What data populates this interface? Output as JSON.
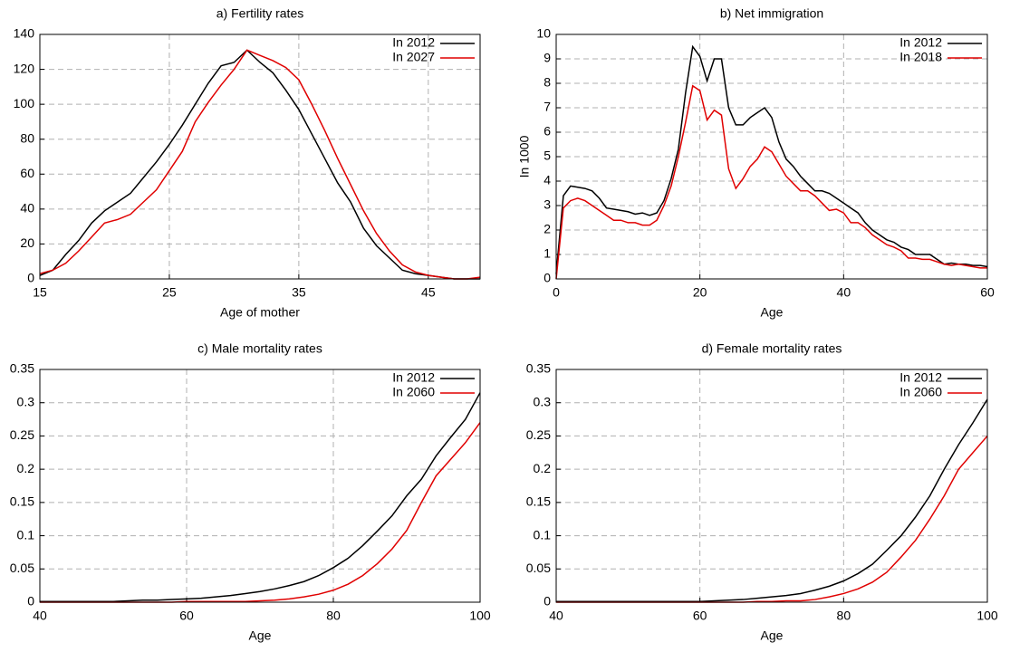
{
  "chart_data": [
    {
      "type": "line",
      "title": "a) Fertility rates",
      "xlabel": "Age of mother",
      "x": [
        15,
        16,
        17,
        18,
        19,
        20,
        21,
        22,
        23,
        24,
        25,
        26,
        27,
        28,
        29,
        30,
        31,
        32,
        33,
        34,
        35,
        36,
        37,
        38,
        39,
        40,
        41,
        42,
        43,
        44,
        45,
        46,
        47,
        48,
        49
      ],
      "series": [
        {
          "name": "In 2012",
          "color": "#000000",
          "values": [
            2,
            5,
            14,
            22,
            32,
            39,
            44,
            49,
            58,
            67,
            77,
            88,
            100,
            112,
            122,
            124,
            131,
            124,
            118,
            108,
            97,
            83,
            69,
            55,
            44,
            29,
            19,
            12,
            5,
            3,
            2,
            1,
            0,
            0,
            0
          ]
        },
        {
          "name": "In 2027",
          "color": "#e00000",
          "values": [
            3,
            5,
            9,
            16,
            24,
            32,
            34,
            37,
            44,
            51,
            62,
            73,
            90,
            101,
            111,
            120,
            131,
            128,
            125,
            121,
            114,
            100,
            85,
            69,
            54,
            39,
            26,
            16,
            8,
            4,
            2,
            1,
            0,
            0,
            1
          ]
        }
      ],
      "xlim": [
        15,
        49
      ],
      "xticks": [
        15,
        25,
        35,
        45
      ],
      "ylim": [
        0,
        140
      ],
      "yticks": [
        0,
        20,
        40,
        60,
        80,
        100,
        120,
        140
      ],
      "grid": true,
      "legend": "upper right"
    },
    {
      "type": "line",
      "title": "b) Net immigration",
      "xlabel": "Age",
      "ylabel": "In 1000",
      "x": [
        0,
        1,
        2,
        3,
        4,
        5,
        6,
        7,
        8,
        9,
        10,
        11,
        12,
        13,
        14,
        15,
        16,
        17,
        18,
        19,
        20,
        21,
        22,
        23,
        24,
        25,
        26,
        27,
        28,
        29,
        30,
        31,
        32,
        33,
        34,
        35,
        36,
        37,
        38,
        39,
        40,
        41,
        42,
        43,
        44,
        45,
        46,
        47,
        48,
        49,
        50,
        51,
        52,
        53,
        54,
        55,
        56,
        57,
        58,
        59,
        60
      ],
      "series": [
        {
          "name": "In 2012",
          "color": "#000000",
          "values": [
            0.2,
            3.4,
            3.8,
            3.75,
            3.7,
            3.6,
            3.3,
            2.9,
            2.85,
            2.8,
            2.75,
            2.65,
            2.7,
            2.6,
            2.7,
            3.2,
            4.1,
            5.3,
            7.6,
            9.5,
            9.1,
            8.1,
            9.0,
            9.0,
            7.0,
            6.3,
            6.3,
            6.6,
            6.8,
            7.0,
            6.6,
            5.6,
            4.9,
            4.6,
            4.2,
            3.9,
            3.6,
            3.6,
            3.5,
            3.3,
            3.1,
            2.9,
            2.7,
            2.3,
            2.0,
            1.8,
            1.6,
            1.5,
            1.3,
            1.2,
            1.0,
            1.0,
            1.0,
            0.8,
            0.6,
            0.65,
            0.6,
            0.6,
            0.55,
            0.55,
            0.5
          ]
        },
        {
          "name": "In 2018",
          "color": "#e00000",
          "values": [
            0,
            2.9,
            3.2,
            3.3,
            3.2,
            3.0,
            2.8,
            2.6,
            2.4,
            2.4,
            2.3,
            2.3,
            2.2,
            2.2,
            2.4,
            3.0,
            3.8,
            5.0,
            6.4,
            7.9,
            7.7,
            6.5,
            6.9,
            6.7,
            4.5,
            3.7,
            4.1,
            4.6,
            4.9,
            5.4,
            5.2,
            4.7,
            4.2,
            3.9,
            3.6,
            3.6,
            3.4,
            3.1,
            2.8,
            2.85,
            2.7,
            2.3,
            2.3,
            2.1,
            1.8,
            1.6,
            1.4,
            1.3,
            1.15,
            0.85,
            0.85,
            0.8,
            0.8,
            0.7,
            0.6,
            0.55,
            0.6,
            0.55,
            0.5,
            0.45,
            0.45
          ]
        }
      ],
      "xlim": [
        0,
        60
      ],
      "xticks": [
        0,
        20,
        40,
        60
      ],
      "ylim": [
        0,
        10
      ],
      "yticks": [
        0,
        1,
        2,
        3,
        4,
        5,
        6,
        7,
        8,
        9,
        10
      ],
      "grid": true,
      "legend": "upper right"
    },
    {
      "type": "line",
      "title": "c) Male mortality rates",
      "xlabel": "Age",
      "x": [
        40,
        42,
        44,
        46,
        48,
        50,
        52,
        54,
        56,
        58,
        60,
        62,
        64,
        66,
        68,
        70,
        72,
        74,
        76,
        78,
        80,
        82,
        84,
        86,
        88,
        90,
        92,
        94,
        96,
        98,
        100
      ],
      "series": [
        {
          "name": "In 2012",
          "color": "#000000",
          "values": [
            0.001,
            0.001,
            0.001,
            0.001,
            0.001,
            0.001,
            0.002,
            0.003,
            0.003,
            0.004,
            0.005,
            0.006,
            0.008,
            0.01,
            0.013,
            0.016,
            0.02,
            0.025,
            0.031,
            0.04,
            0.052,
            0.066,
            0.085,
            0.107,
            0.13,
            0.16,
            0.185,
            0.22,
            0.248,
            0.275,
            0.315
          ]
        },
        {
          "name": "In 2060",
          "color": "#e00000",
          "values": [
            0,
            0,
            0,
            0,
            0,
            0,
            0,
            0,
            0,
            0,
            0.001,
            0.001,
            0.001,
            0.001,
            0.001,
            0.002,
            0.003,
            0.005,
            0.008,
            0.012,
            0.018,
            0.027,
            0.04,
            0.058,
            0.08,
            0.108,
            0.15,
            0.19,
            0.215,
            0.24,
            0.27
          ]
        }
      ],
      "xlim": [
        40,
        100
      ],
      "xticks": [
        40,
        60,
        80,
        100
      ],
      "ylim": [
        0,
        0.35
      ],
      "yticks": [
        0,
        0.05,
        0.1,
        0.15,
        0.2,
        0.25,
        0.3,
        0.35
      ],
      "grid": true,
      "legend": "upper right"
    },
    {
      "type": "line",
      "title": "d) Female mortality rates",
      "xlabel": "Age",
      "x": [
        40,
        42,
        44,
        46,
        48,
        50,
        52,
        54,
        56,
        58,
        60,
        62,
        64,
        66,
        68,
        70,
        72,
        74,
        76,
        78,
        80,
        82,
        84,
        86,
        88,
        90,
        92,
        94,
        96,
        98,
        100
      ],
      "series": [
        {
          "name": "In 2012",
          "color": "#000000",
          "values": [
            0.001,
            0.001,
            0.001,
            0.001,
            0.001,
            0.001,
            0.001,
            0.001,
            0.001,
            0.001,
            0.001,
            0.002,
            0.003,
            0.004,
            0.006,
            0.008,
            0.01,
            0.013,
            0.018,
            0.024,
            0.032,
            0.043,
            0.057,
            0.078,
            0.1,
            0.128,
            0.16,
            0.2,
            0.237,
            0.27,
            0.305
          ]
        },
        {
          "name": "In 2060",
          "color": "#e00000",
          "values": [
            0,
            0,
            0,
            0,
            0,
            0,
            0,
            0,
            0,
            0,
            0,
            0,
            0,
            0,
            0.001,
            0.001,
            0.002,
            0.002,
            0.004,
            0.008,
            0.013,
            0.02,
            0.03,
            0.045,
            0.068,
            0.093,
            0.125,
            0.16,
            0.2,
            0.225,
            0.25
          ]
        }
      ],
      "xlim": [
        40,
        100
      ],
      "xticks": [
        40,
        60,
        80,
        100
      ],
      "ylim": [
        0,
        0.35
      ],
      "yticks": [
        0,
        0.05,
        0.1,
        0.15,
        0.2,
        0.25,
        0.3,
        0.35
      ],
      "grid": true,
      "legend": "upper right"
    }
  ]
}
